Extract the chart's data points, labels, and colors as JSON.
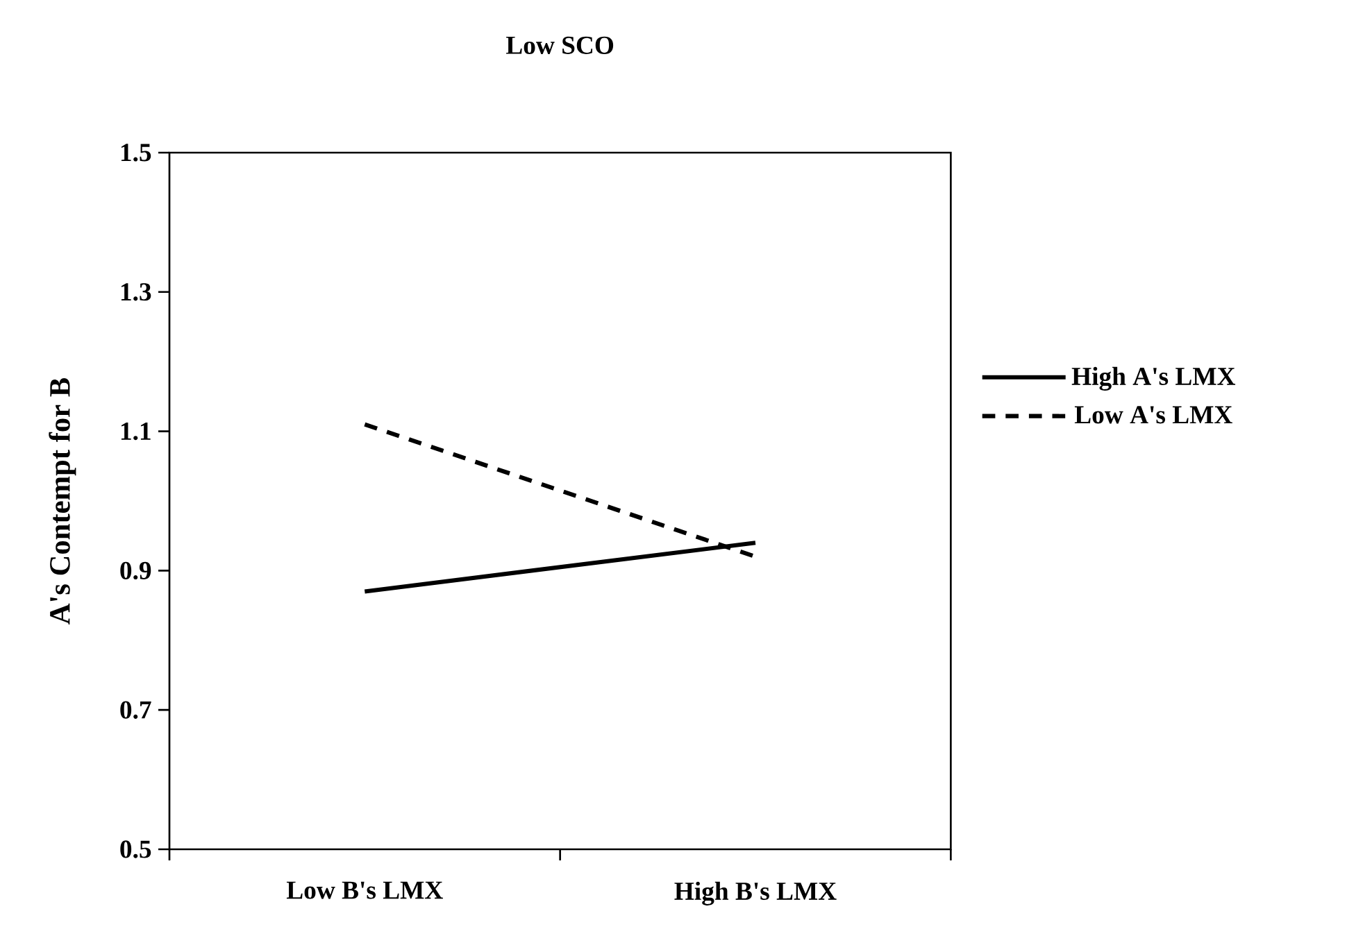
{
  "chart_data": {
    "type": "line",
    "title": "Low SCO",
    "ylabel": "A's Contempt for B",
    "categories": [
      "Low B's LMX",
      "High B's LMX"
    ],
    "series": [
      {
        "name": "High A's LMX",
        "color": "#000000",
        "values": [
          0.87,
          0.94
        ],
        "line_style": "solid"
      },
      {
        "name": "Low A's LMX",
        "color": "#000000",
        "values": [
          1.11,
          0.92
        ],
        "line_style": "dashed"
      }
    ],
    "ylim": [
      0.5,
      1.5
    ],
    "yticks": [
      0.5,
      0.7,
      0.9,
      1.1,
      1.3,
      1.5
    ],
    "legend": "right",
    "marker": "none"
  }
}
